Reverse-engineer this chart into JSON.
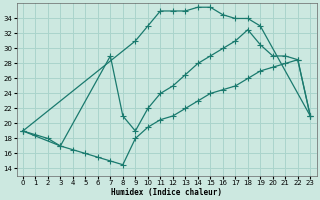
{
  "xlabel": "Humidex (Indice chaleur)",
  "bg_color": "#cce8e0",
  "grid_color": "#aad4cc",
  "line_color": "#1a7a6e",
  "xlim": [
    -0.5,
    23.5
  ],
  "ylim": [
    13,
    36
  ],
  "yticks": [
    14,
    16,
    18,
    20,
    22,
    24,
    26,
    28,
    30,
    32,
    34
  ],
  "xticks": [
    0,
    1,
    2,
    3,
    4,
    5,
    6,
    7,
    8,
    9,
    10,
    11,
    12,
    13,
    14,
    15,
    16,
    17,
    18,
    19,
    20,
    21,
    22,
    23
  ],
  "curve_top_x": [
    0,
    9,
    10,
    11,
    12,
    13,
    14,
    15,
    16,
    17,
    18,
    19,
    23
  ],
  "curve_top_y": [
    19,
    31,
    33,
    35,
    35,
    35,
    35.5,
    35.5,
    34.5,
    34,
    34,
    33,
    21
  ],
  "curve_mid_x": [
    0,
    3,
    7,
    8,
    9,
    10,
    11,
    12,
    13,
    14,
    15,
    16,
    17,
    18,
    19,
    20,
    21,
    22,
    23
  ],
  "curve_mid_y": [
    19,
    17,
    29,
    21,
    19,
    22,
    24,
    25,
    26.5,
    28,
    29,
    30,
    31,
    32.5,
    30.5,
    29,
    29,
    28.5,
    21
  ],
  "curve_bot_x": [
    0,
    1,
    2,
    3,
    4,
    5,
    6,
    7,
    8,
    9,
    10,
    11,
    12,
    13,
    14,
    15,
    16,
    17,
    18,
    19,
    20,
    21,
    22,
    23
  ],
  "curve_bot_y": [
    19,
    18.5,
    18,
    17,
    16.5,
    16,
    15.5,
    15,
    14.5,
    18,
    19.5,
    20.5,
    21,
    22,
    23,
    24,
    24.5,
    25,
    26,
    27,
    27.5,
    28,
    28.5,
    21
  ]
}
